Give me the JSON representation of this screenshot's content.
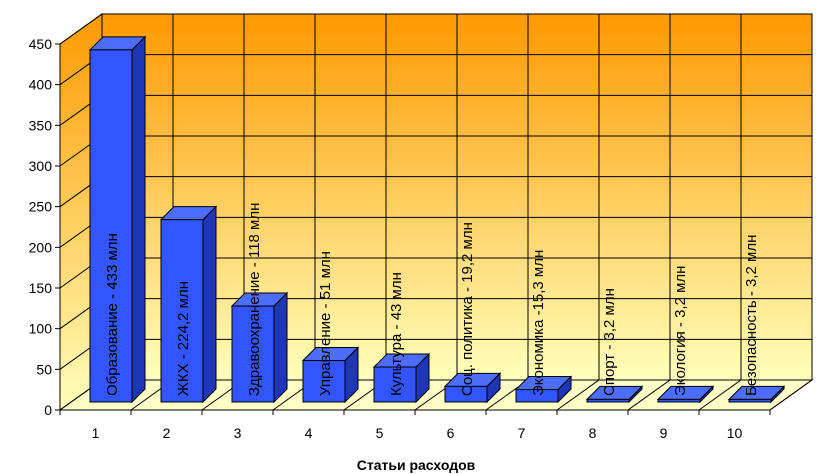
{
  "colors": {
    "wall_top": "#ff9900",
    "wall_bottom": "#ffffbb",
    "floor": "#ffffc8",
    "grid": "#000000",
    "bar_front": "#3355ff",
    "bar_top": "#4d6dff",
    "bar_side": "#1f36b8",
    "bar_stroke": "#000000"
  },
  "chart_data": {
    "type": "bar",
    "style": "3d-column",
    "categories": [
      "1",
      "2",
      "3",
      "4",
      "5",
      "6",
      "7",
      "8",
      "9",
      "10"
    ],
    "values": [
      433,
      224.2,
      118,
      51,
      43,
      19.2,
      15.3,
      3.2,
      3.2,
      3.2
    ],
    "data_labels": [
      "Образование - 433 млн",
      "ЖКХ - 224,2 млн",
      "Здравоохранение - 118 млн",
      "Управление - 51 млн",
      "Культура - 43 млн",
      "Соц. политика - 19,2 млн",
      "Экономика -15,3 млн",
      "Спорт - 3,2 млн",
      "Экология - 3,2 млн",
      "Безопасность - 3,2 млн"
    ],
    "y_ticks": [
      "0",
      "50",
      "100",
      "150",
      "200",
      "250",
      "300",
      "350",
      "400",
      "450"
    ],
    "ylim": [
      0,
      450
    ],
    "xlabel": "Статьи расходов",
    "ylabel": "",
    "grid": true,
    "legend": "none"
  }
}
